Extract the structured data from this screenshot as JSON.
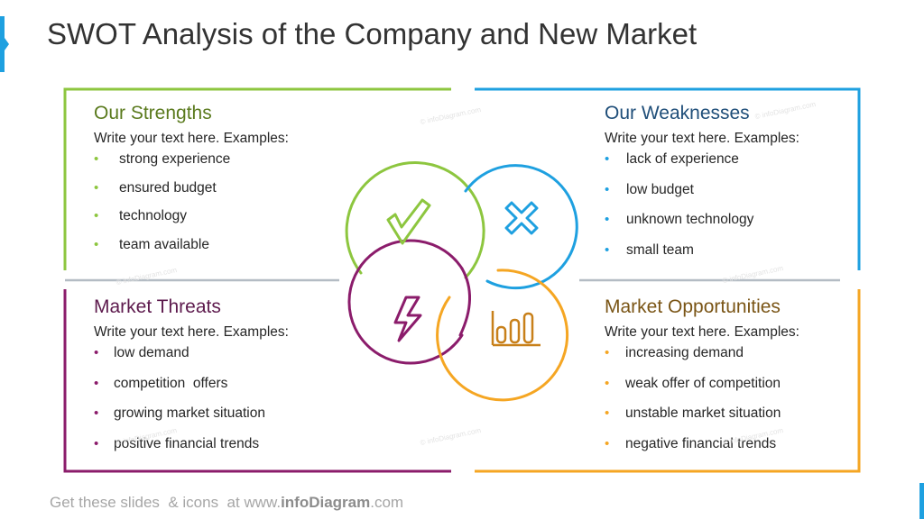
{
  "title": "SWOT Analysis of the Company and New Market",
  "colors": {
    "strengths": "#8dc63f",
    "weaknesses": "#1ea0e0",
    "threats": "#8b1c6b",
    "opportunities": "#f5a623",
    "accent": "#1ea0e0"
  },
  "quadrants": {
    "strengths": {
      "heading": "Our Strengths",
      "intro": "Write your text here. Examples:",
      "items": [
        "strong experience",
        "ensured budget",
        "technology",
        "team available"
      ]
    },
    "weaknesses": {
      "heading": "Our Weaknesses",
      "intro": "Write your text here. Examples:",
      "items": [
        "lack of experience",
        "low budget",
        "unknown technology",
        "small team"
      ]
    },
    "threats": {
      "heading": "Market Threats",
      "intro": "Write your text here. Examples:",
      "items": [
        "low demand",
        "competition  offers",
        "growing market situation",
        "positive financial trends"
      ]
    },
    "opportunities": {
      "heading": "Market Opportunities",
      "intro": "Write your text here. Examples:",
      "items": [
        "increasing demand",
        "weak offer of competition",
        "unstable market situation",
        "negative financial trends"
      ]
    }
  },
  "icons": {
    "strengths": "checkmark-icon",
    "weaknesses": "x-cross-icon",
    "threats": "lightning-icon",
    "opportunities": "bar-chart-icon"
  },
  "footer": {
    "prefix": "Get these slides  & icons  at www.",
    "brand": "infoDiagram",
    "suffix": ".com"
  },
  "watermark": "© infoDiagram.com"
}
